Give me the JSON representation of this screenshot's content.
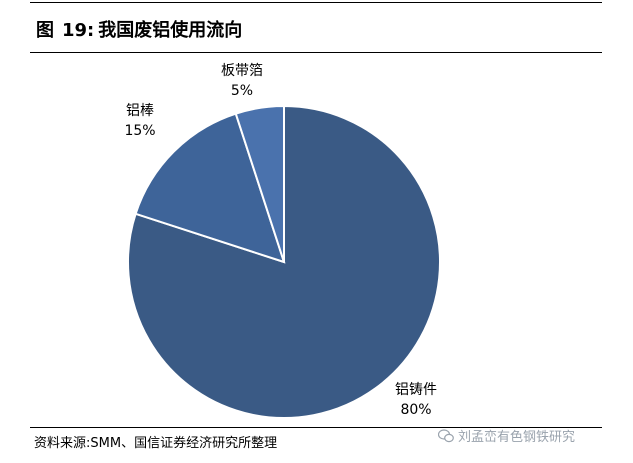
{
  "header": {
    "fig_prefix": "图",
    "fig_number": "19:",
    "title": "我国废铝使用流向"
  },
  "chart_data": {
    "type": "pie",
    "title": "我国废铝使用流向",
    "start": "12 o'clock",
    "direction": "clockwise",
    "slices": [
      {
        "category": "铝铸件",
        "value": 80,
        "value_label": "80%",
        "color": "#3a5a85"
      },
      {
        "category": "铝棒",
        "value": 15,
        "value_label": "15%",
        "color": "#3e6499"
      },
      {
        "category": "板带箔",
        "value": 5,
        "value_label": "5%",
        "color": "#4a72ad"
      }
    ],
    "slice_border": "#ffffff"
  },
  "footer": {
    "source": "资料来源:SMM、国信证券经济研究所整理",
    "watermark": "刘孟峦有色钢铁研究",
    "watermark_icon": "wechat-icon"
  }
}
